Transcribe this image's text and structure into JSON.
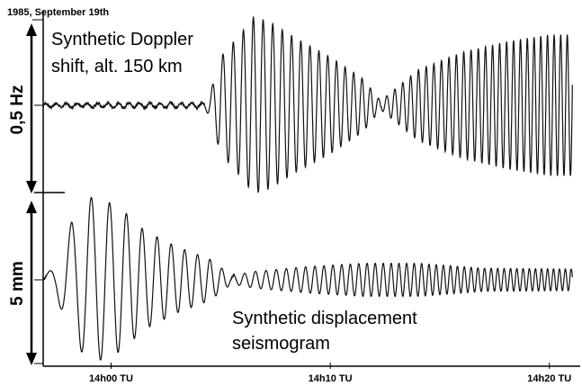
{
  "figure": {
    "date_label": "1985, September 19th",
    "upper_label_line1": "Synthetic Doppler",
    "upper_label_line2": "shift,  alt. 150 km",
    "lower_label_line1": "Synthetic displacement",
    "lower_label_line2": "seismogram",
    "upper_scale_label": "0,5 Hz",
    "lower_scale_label": "5 mm"
  },
  "chart_data": [
    {
      "type": "line",
      "title": "Synthetic Doppler shift, alt. 150 km",
      "ylabel": "0,5 Hz",
      "x_tick_labels": [
        "14h00 TU",
        "14h10 TU",
        "14h20 TU"
      ],
      "x_unit": "minutes after 14h00 TU",
      "xlim": [
        -3.1,
        21.2
      ],
      "series": [
        {
          "name": "Synthetic Doppler shift, alt. 150 km",
          "envelope_points": [
            {
              "t": -3.0,
              "amp": 0.02
            },
            {
              "t": 4.2,
              "amp": 0.03
            },
            {
              "t": 4.5,
              "amp": 0.12
            },
            {
              "t": 5.0,
              "amp": 0.55
            },
            {
              "t": 5.8,
              "amp": 0.78
            },
            {
              "t": 6.5,
              "amp": 1.0
            },
            {
              "t": 7.2,
              "amp": 0.95
            },
            {
              "t": 8.5,
              "amp": 0.75
            },
            {
              "t": 10.0,
              "amp": 0.55
            },
            {
              "t": 11.5,
              "amp": 0.3
            },
            {
              "t": 12.3,
              "amp": 0.05
            },
            {
              "t": 14.0,
              "amp": 0.4
            },
            {
              "t": 16.0,
              "amp": 0.6
            },
            {
              "t": 18.0,
              "amp": 0.72
            },
            {
              "t": 20.0,
              "amp": 0.8
            },
            {
              "t": 21.1,
              "amp": 0.8
            }
          ]
        }
      ]
    },
    {
      "type": "line",
      "title": "Synthetic displacement seismogram",
      "ylabel": "5 mm",
      "x_tick_labels": [
        "14h00 TU",
        "14h10 TU",
        "14h20 TU"
      ],
      "x_unit": "minutes after 14h00 TU",
      "xlim": [
        -3.1,
        21.2
      ],
      "series": [
        {
          "name": "Synthetic displacement seismogram",
          "envelope_points": [
            {
              "t": -3.0,
              "amp": 0.05
            },
            {
              "t": -2.5,
              "amp": 0.2
            },
            {
              "t": -1.8,
              "amp": 0.7
            },
            {
              "t": -1.0,
              "amp": 1.0
            },
            {
              "t": -0.2,
              "amp": 0.95
            },
            {
              "t": 0.5,
              "amp": 0.85
            },
            {
              "t": 1.5,
              "amp": 0.6
            },
            {
              "t": 3.0,
              "amp": 0.4
            },
            {
              "t": 4.5,
              "amp": 0.25
            },
            {
              "t": 5.5,
              "amp": 0.05
            },
            {
              "t": 6.5,
              "amp": 0.1
            },
            {
              "t": 9.0,
              "amp": 0.16
            },
            {
              "t": 11.5,
              "amp": 0.2
            },
            {
              "t": 14.0,
              "amp": 0.2
            },
            {
              "t": 17.0,
              "amp": 0.14
            },
            {
              "t": 21.1,
              "amp": 0.13
            }
          ]
        }
      ]
    }
  ]
}
